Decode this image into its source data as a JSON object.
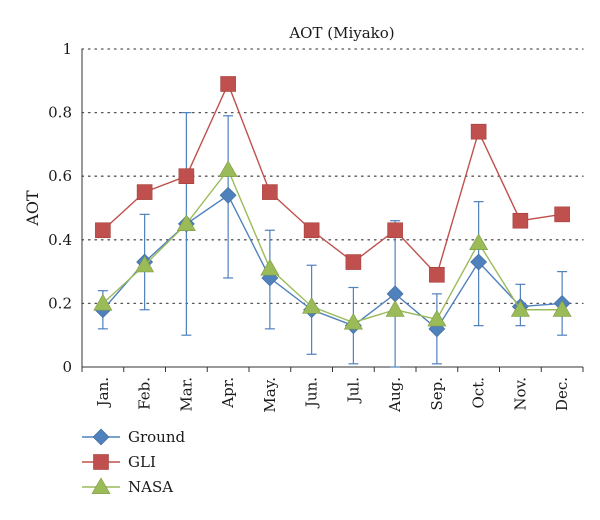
{
  "chart_data": {
    "type": "line",
    "title": "AOT (Miyako)",
    "xlabel": "",
    "ylabel": "AOT",
    "ylim": [
      0,
      1
    ],
    "yticks": [
      "0",
      "0.2",
      "0.4",
      "0.6",
      "0.8",
      "1"
    ],
    "ytick_values": [
      0,
      0.2,
      0.4,
      0.6,
      0.8,
      1
    ],
    "categories": [
      "Jan.",
      "Feb.",
      "Mar.",
      "Apr.",
      "May.",
      "Jun.",
      "Jul.",
      "Aug.",
      "Sep.",
      "Oct.",
      "Nov.",
      "Dec."
    ],
    "grid": "horizontal-dotted",
    "legend_position": "bottom-left",
    "series": [
      {
        "name": "Ground",
        "marker": "diamond",
        "color": "#4f81bd",
        "values": [
          0.18,
          0.33,
          0.45,
          0.54,
          0.28,
          0.18,
          0.13,
          0.23,
          0.12,
          0.33,
          0.19,
          0.2
        ],
        "error_low": [
          0.12,
          0.18,
          0.1,
          0.28,
          0.12,
          0.04,
          0.01,
          0.0,
          0.01,
          0.13,
          0.13,
          0.1
        ],
        "error_high": [
          0.24,
          0.48,
          0.8,
          0.79,
          0.43,
          0.32,
          0.25,
          0.46,
          0.23,
          0.52,
          0.26,
          0.3
        ]
      },
      {
        "name": "GLI",
        "marker": "square",
        "color": "#c0504d",
        "values": [
          0.43,
          0.55,
          0.6,
          0.89,
          0.55,
          0.43,
          0.33,
          0.43,
          0.29,
          0.74,
          0.46,
          0.48
        ]
      },
      {
        "name": "NASA",
        "marker": "triangle",
        "color": "#9bbb59",
        "values": [
          0.2,
          0.32,
          0.45,
          0.62,
          0.31,
          0.19,
          0.14,
          0.18,
          0.15,
          0.39,
          0.18,
          0.18
        ]
      }
    ]
  }
}
